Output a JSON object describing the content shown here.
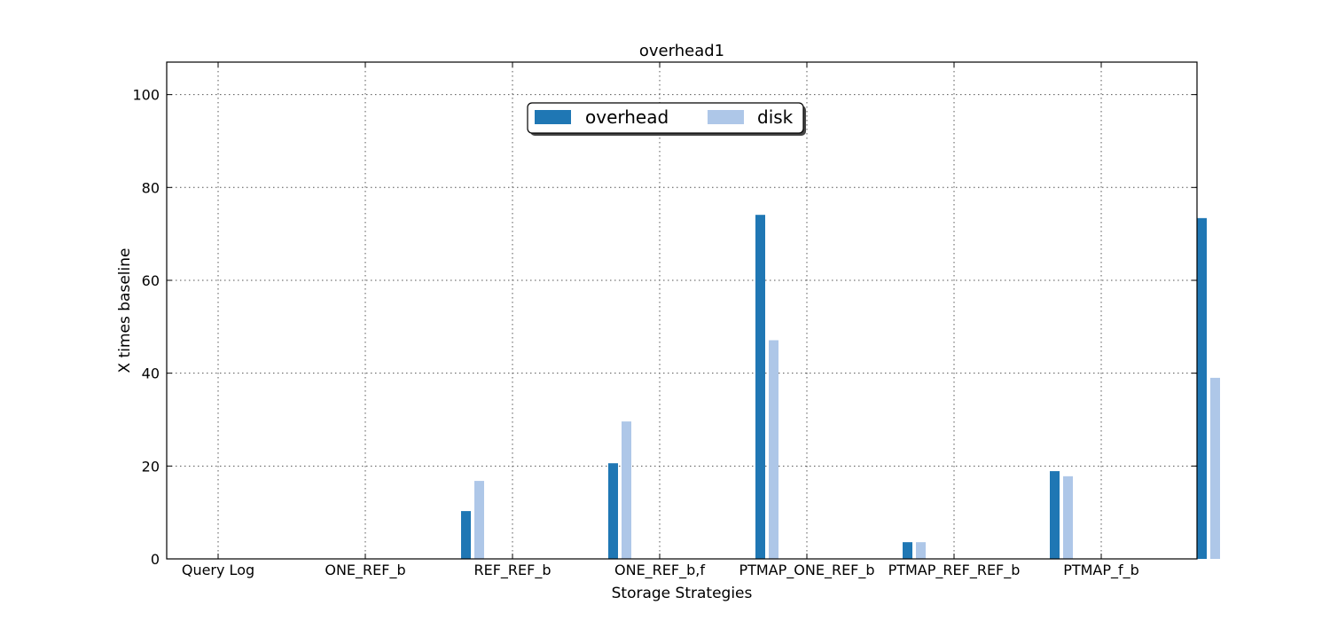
{
  "chart_data": {
    "type": "bar",
    "title": "overhead1",
    "xlabel": "Storage Strategies",
    "ylabel": "X times baseline",
    "ylim": [
      0,
      107
    ],
    "yticks": [
      0,
      20,
      40,
      60,
      80,
      100
    ],
    "grid": true,
    "legend_position": "top-center",
    "categories": [
      "Query Log",
      "ONE_REF_b",
      "REF_REF_b",
      "ONE_REF_b,f",
      "PTMAP_ONE_REF_b",
      "PTMAP_REF_REF_b",
      "PTMAP_f_b"
    ],
    "series": [
      {
        "name": "overhead",
        "color": "#1f77b4",
        "values": [
          0,
          10.3,
          20.6,
          74.1,
          3.6,
          18.9,
          73.4
        ]
      },
      {
        "name": "disk",
        "color": "#aec7e8",
        "values": [
          0,
          16.8,
          29.6,
          47.1,
          3.6,
          17.8,
          39.0
        ]
      }
    ]
  }
}
